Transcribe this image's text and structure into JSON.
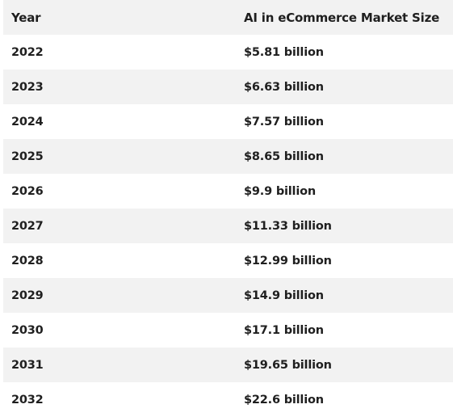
{
  "table": {
    "headers": {
      "year": "Year",
      "market_size": "AI in eCommerce Market Size"
    },
    "rows": [
      {
        "year": "2022",
        "market_size": "$5.81 billion"
      },
      {
        "year": "2023",
        "market_size": "$6.63 billion"
      },
      {
        "year": "2024",
        "market_size": "$7.57 billion"
      },
      {
        "year": "2025",
        "market_size": "$8.65 billion"
      },
      {
        "year": "2026",
        "market_size": "$9.9 billion"
      },
      {
        "year": "2027",
        "market_size": "$11.33 billion"
      },
      {
        "year": "2028",
        "market_size": "$12.99 billion"
      },
      {
        "year": "2029",
        "market_size": "$14.9 billion"
      },
      {
        "year": "2030",
        "market_size": "$17.1 billion"
      },
      {
        "year": "2031",
        "market_size": "$19.65 billion"
      },
      {
        "year": "2032",
        "market_size": "$22.6 billion"
      }
    ]
  },
  "colors": {
    "shaded_row": "#f2f2f2",
    "plain_row": "#ffffff",
    "text": "#1f1f1f"
  }
}
